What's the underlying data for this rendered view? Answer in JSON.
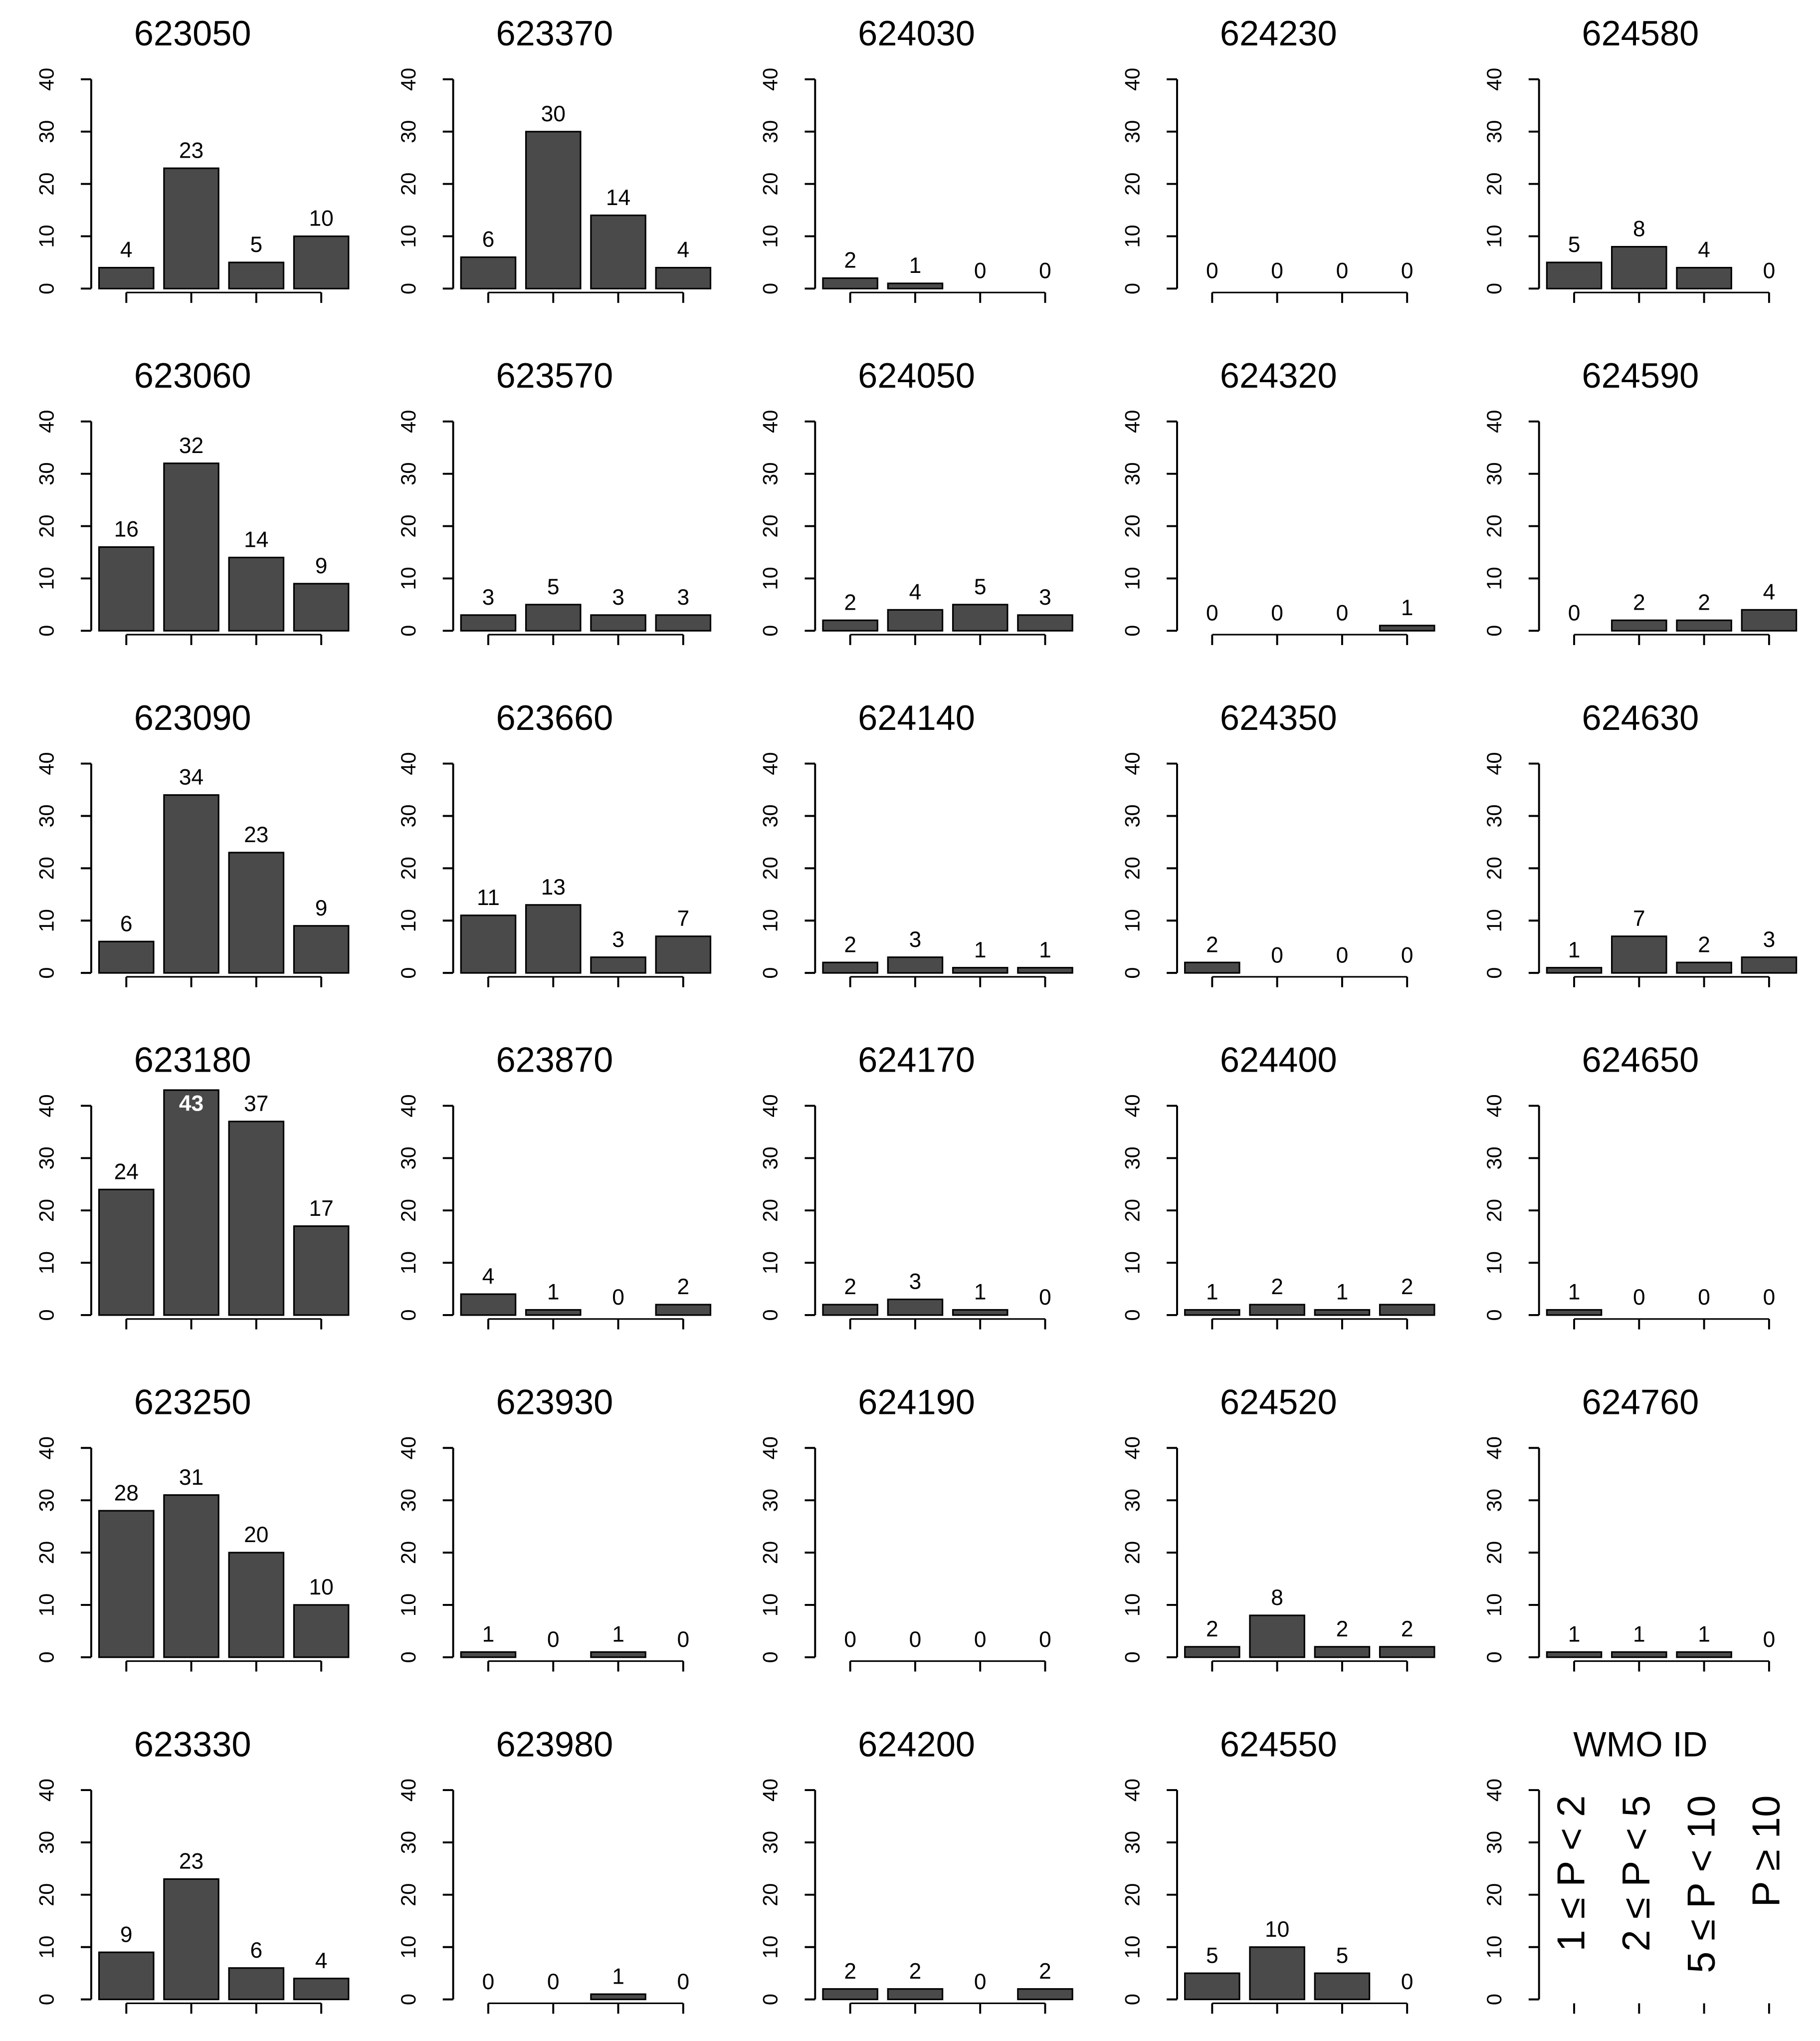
{
  "chart_data": [
    {
      "type": "bar",
      "title": "623050",
      "values": [
        4,
        23,
        5,
        10
      ],
      "ylim": [
        0,
        40
      ],
      "yticks": [
        0,
        10,
        20,
        30,
        40
      ],
      "color": "#4a4a4a"
    },
    {
      "type": "bar",
      "title": "623060",
      "values": [
        16,
        32,
        14,
        9
      ],
      "ylim": [
        0,
        40
      ],
      "yticks": [
        0,
        10,
        20,
        30,
        40
      ],
      "color": "#4a4a4a"
    },
    {
      "type": "bar",
      "title": "623090",
      "values": [
        6,
        34,
        23,
        9
      ],
      "ylim": [
        0,
        40
      ],
      "yticks": [
        0,
        10,
        20,
        30,
        40
      ],
      "color": "#4a4a4a"
    },
    {
      "type": "bar",
      "title": "623180",
      "values": [
        24,
        43,
        37,
        17
      ],
      "ylim": [
        0,
        40
      ],
      "yticks": [
        0,
        10,
        20,
        30,
        40
      ],
      "color": "#4a4a4a"
    },
    {
      "type": "bar",
      "title": "623250",
      "values": [
        28,
        31,
        20,
        10
      ],
      "ylim": [
        0,
        40
      ],
      "yticks": [
        0,
        10,
        20,
        30,
        40
      ],
      "color": "#4a4a4a"
    },
    {
      "type": "bar",
      "title": "623330",
      "values": [
        9,
        23,
        6,
        4
      ],
      "ylim": [
        0,
        40
      ],
      "yticks": [
        0,
        10,
        20,
        30,
        40
      ],
      "color": "#4a4a4a"
    },
    {
      "type": "bar",
      "title": "623370",
      "values": [
        6,
        30,
        14,
        4
      ],
      "ylim": [
        0,
        40
      ],
      "yticks": [
        0,
        10,
        20,
        30,
        40
      ],
      "color": "#4a4a4a"
    },
    {
      "type": "bar",
      "title": "623570",
      "values": [
        3,
        5,
        3,
        3
      ],
      "ylim": [
        0,
        40
      ],
      "yticks": [
        0,
        10,
        20,
        30,
        40
      ],
      "color": "#4a4a4a"
    },
    {
      "type": "bar",
      "title": "623660",
      "values": [
        11,
        13,
        3,
        7
      ],
      "ylim": [
        0,
        40
      ],
      "yticks": [
        0,
        10,
        20,
        30,
        40
      ],
      "color": "#4a4a4a"
    },
    {
      "type": "bar",
      "title": "623870",
      "values": [
        4,
        1,
        0,
        2
      ],
      "ylim": [
        0,
        40
      ],
      "yticks": [
        0,
        10,
        20,
        30,
        40
      ],
      "color": "#4a4a4a"
    },
    {
      "type": "bar",
      "title": "623930",
      "values": [
        1,
        0,
        1,
        0
      ],
      "ylim": [
        0,
        40
      ],
      "yticks": [
        0,
        10,
        20,
        30,
        40
      ],
      "color": "#4a4a4a"
    },
    {
      "type": "bar",
      "title": "623980",
      "values": [
        0,
        0,
        1,
        0
      ],
      "ylim": [
        0,
        40
      ],
      "yticks": [
        0,
        10,
        20,
        30,
        40
      ],
      "color": "#4a4a4a"
    },
    {
      "type": "bar",
      "title": "624030",
      "values": [
        2,
        1,
        0,
        0
      ],
      "ylim": [
        0,
        40
      ],
      "yticks": [
        0,
        10,
        20,
        30,
        40
      ],
      "color": "#4a4a4a"
    },
    {
      "type": "bar",
      "title": "624050",
      "values": [
        2,
        4,
        5,
        3
      ],
      "ylim": [
        0,
        40
      ],
      "yticks": [
        0,
        10,
        20,
        30,
        40
      ],
      "color": "#4a4a4a"
    },
    {
      "type": "bar",
      "title": "624140",
      "values": [
        2,
        3,
        1,
        1
      ],
      "ylim": [
        0,
        40
      ],
      "yticks": [
        0,
        10,
        20,
        30,
        40
      ],
      "color": "#4a4a4a"
    },
    {
      "type": "bar",
      "title": "624170",
      "values": [
        2,
        3,
        1,
        0
      ],
      "ylim": [
        0,
        40
      ],
      "yticks": [
        0,
        10,
        20,
        30,
        40
      ],
      "color": "#4a4a4a"
    },
    {
      "type": "bar",
      "title": "624190",
      "values": [
        0,
        0,
        0,
        0
      ],
      "ylim": [
        0,
        40
      ],
      "yticks": [
        0,
        10,
        20,
        30,
        40
      ],
      "color": "#4a4a4a"
    },
    {
      "type": "bar",
      "title": "624200",
      "values": [
        2,
        2,
        0,
        2
      ],
      "ylim": [
        0,
        40
      ],
      "yticks": [
        0,
        10,
        20,
        30,
        40
      ],
      "color": "#4a4a4a"
    },
    {
      "type": "bar",
      "title": "624230",
      "values": [
        0,
        0,
        0,
        0
      ],
      "ylim": [
        0,
        40
      ],
      "yticks": [
        0,
        10,
        20,
        30,
        40
      ],
      "color": "#4a4a4a"
    },
    {
      "type": "bar",
      "title": "624320",
      "values": [
        0,
        0,
        0,
        1
      ],
      "ylim": [
        0,
        40
      ],
      "yticks": [
        0,
        10,
        20,
        30,
        40
      ],
      "color": "#4a4a4a"
    },
    {
      "type": "bar",
      "title": "624350",
      "values": [
        2,
        0,
        0,
        0
      ],
      "ylim": [
        0,
        40
      ],
      "yticks": [
        0,
        10,
        20,
        30,
        40
      ],
      "color": "#4a4a4a"
    },
    {
      "type": "bar",
      "title": "624400",
      "values": [
        1,
        2,
        1,
        2
      ],
      "ylim": [
        0,
        40
      ],
      "yticks": [
        0,
        10,
        20,
        30,
        40
      ],
      "color": "#4a4a4a"
    },
    {
      "type": "bar",
      "title": "624520",
      "values": [
        2,
        8,
        2,
        2
      ],
      "ylim": [
        0,
        40
      ],
      "yticks": [
        0,
        10,
        20,
        30,
        40
      ],
      "color": "#4a4a4a"
    },
    {
      "type": "bar",
      "title": "624550",
      "values": [
        5,
        10,
        5,
        0
      ],
      "ylim": [
        0,
        40
      ],
      "yticks": [
        0,
        10,
        20,
        30,
        40
      ],
      "color": "#4a4a4a"
    },
    {
      "type": "bar",
      "title": "624580",
      "values": [
        5,
        8,
        4,
        0
      ],
      "ylim": [
        0,
        40
      ],
      "yticks": [
        0,
        10,
        20,
        30,
        40
      ],
      "color": "#4a4a4a"
    },
    {
      "type": "bar",
      "title": "624590",
      "values": [
        0,
        2,
        2,
        4
      ],
      "ylim": [
        0,
        40
      ],
      "yticks": [
        0,
        10,
        20,
        30,
        40
      ],
      "color": "#4a4a4a"
    },
    {
      "type": "bar",
      "title": "624630",
      "values": [
        1,
        7,
        2,
        3
      ],
      "ylim": [
        0,
        40
      ],
      "yticks": [
        0,
        10,
        20,
        30,
        40
      ],
      "color": "#4a4a4a"
    },
    {
      "type": "bar",
      "title": "624650",
      "values": [
        1,
        0,
        0,
        0
      ],
      "ylim": [
        0,
        40
      ],
      "yticks": [
        0,
        10,
        20,
        30,
        40
      ],
      "color": "#4a4a4a"
    },
    {
      "type": "bar",
      "title": "624760",
      "values": [
        1,
        1,
        1,
        0
      ],
      "ylim": [
        0,
        40
      ],
      "yticks": [
        0,
        10,
        20,
        30,
        40
      ],
      "color": "#4a4a4a"
    },
    {
      "type": "legend",
      "title": "WMO ID",
      "categories": [
        "1 ≤ P < 2",
        "2 ≤ P < 5",
        "5 ≤ P < 10",
        "P ≥ 10"
      ],
      "ylim": [
        0,
        40
      ],
      "yticks": [
        0,
        10,
        20,
        30,
        40
      ]
    }
  ]
}
